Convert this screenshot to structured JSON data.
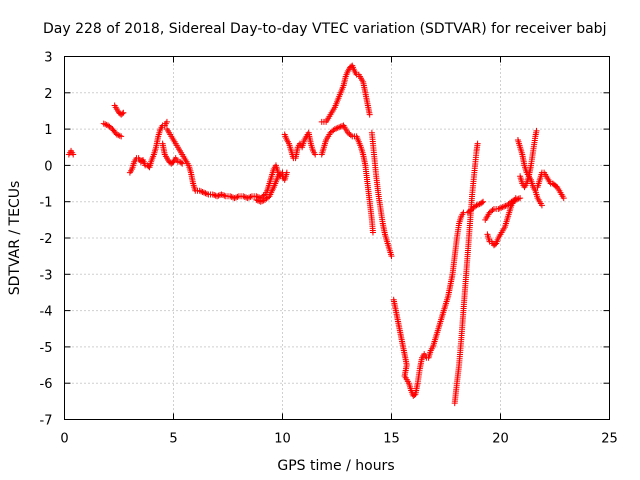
{
  "chart_data": {
    "type": "scatter",
    "title": "Day 228 of 2018, Sidereal Day-to-day VTEC variation (SDTVAR) for receiver babj",
    "xlabel": "GPS time / hours",
    "ylabel": "SDTVAR / TECUs",
    "xlim": [
      0,
      25
    ],
    "ylim": [
      -7,
      3
    ],
    "xticks": [
      "0",
      "5",
      "10",
      "15",
      "20",
      "25"
    ],
    "yticks": [
      "3",
      "2",
      "1",
      "0",
      "-1",
      "-2",
      "-3",
      "-4",
      "-5",
      "-6",
      "-7"
    ],
    "grid": true,
    "marker": "+",
    "color": "#ff0000",
    "series": [
      {
        "segments": [
          [
            [
              0.2,
              0.3
            ],
            [
              0.3,
              0.4
            ],
            [
              0.4,
              0.3
            ]
          ],
          [
            [
              1.8,
              1.15
            ],
            [
              2.0,
              1.1
            ],
            [
              2.2,
              1.0
            ],
            [
              2.4,
              0.85
            ],
            [
              2.6,
              0.8
            ]
          ],
          [
            [
              2.3,
              1.65
            ],
            [
              2.4,
              1.55
            ],
            [
              2.5,
              1.45
            ],
            [
              2.6,
              1.4
            ],
            [
              2.7,
              1.45
            ]
          ],
          [
            [
              3.0,
              -0.2
            ],
            [
              3.1,
              -0.1
            ],
            [
              3.2,
              0.1
            ],
            [
              3.3,
              0.2
            ],
            [
              3.4,
              0.2
            ],
            [
              3.5,
              0.1
            ],
            [
              3.6,
              0.15
            ],
            [
              3.7,
              0.0
            ],
            [
              3.8,
              0.0
            ],
            [
              3.9,
              -0.05
            ],
            [
              4.0,
              0.15
            ],
            [
              4.1,
              0.3
            ],
            [
              4.2,
              0.5
            ],
            [
              4.3,
              0.8
            ],
            [
              4.4,
              1.0
            ],
            [
              4.5,
              1.1
            ],
            [
              4.6,
              1.1
            ],
            [
              4.7,
              1.2
            ]
          ],
          [
            [
              4.5,
              0.6
            ],
            [
              4.6,
              0.3
            ],
            [
              4.7,
              0.2
            ],
            [
              4.8,
              0.1
            ],
            [
              4.9,
              0.05
            ],
            [
              5.0,
              0.1
            ],
            [
              5.1,
              0.2
            ],
            [
              5.2,
              0.1
            ],
            [
              5.3,
              0.1
            ],
            [
              5.4,
              0.05
            ]
          ],
          [
            [
              4.7,
              1.0
            ],
            [
              4.8,
              0.9
            ],
            [
              4.9,
              0.8
            ],
            [
              5.0,
              0.7
            ],
            [
              5.1,
              0.6
            ],
            [
              5.2,
              0.5
            ],
            [
              5.3,
              0.4
            ],
            [
              5.4,
              0.3
            ],
            [
              5.5,
              0.2
            ],
            [
              5.6,
              0.1
            ],
            [
              5.7,
              0.0
            ],
            [
              5.8,
              -0.2
            ],
            [
              5.9,
              -0.5
            ],
            [
              6.0,
              -0.7
            ],
            [
              6.2,
              -0.7
            ],
            [
              6.4,
              -0.75
            ],
            [
              6.6,
              -0.8
            ],
            [
              6.8,
              -0.8
            ],
            [
              7.0,
              -0.85
            ],
            [
              7.2,
              -0.8
            ],
            [
              7.4,
              -0.85
            ],
            [
              7.6,
              -0.85
            ],
            [
              7.8,
              -0.9
            ],
            [
              8.0,
              -0.85
            ],
            [
              8.2,
              -0.85
            ],
            [
              8.4,
              -0.9
            ],
            [
              8.6,
              -0.85
            ],
            [
              8.8,
              -0.85
            ],
            [
              9.0,
              -0.9
            ],
            [
              9.2,
              -0.8
            ],
            [
              9.3,
              -0.7
            ],
            [
              9.4,
              -0.5
            ],
            [
              9.5,
              -0.3
            ],
            [
              9.6,
              -0.1
            ],
            [
              9.7,
              0.0
            ],
            [
              9.8,
              -0.2
            ],
            [
              9.9,
              -0.3
            ],
            [
              10.0,
              -0.3
            ],
            [
              10.1,
              -0.4
            ],
            [
              10.2,
              -0.2
            ]
          ],
          [
            [
              8.8,
              -0.95
            ],
            [
              9.0,
              -1.0
            ],
            [
              9.2,
              -0.95
            ],
            [
              9.4,
              -0.85
            ],
            [
              9.6,
              -0.6
            ],
            [
              9.8,
              -0.3
            ],
            [
              10.0,
              -0.2
            ]
          ],
          [
            [
              10.1,
              0.85
            ],
            [
              10.2,
              0.7
            ],
            [
              10.3,
              0.6
            ],
            [
              10.4,
              0.4
            ],
            [
              10.5,
              0.2
            ],
            [
              10.6,
              0.2
            ],
            [
              10.7,
              0.5
            ],
            [
              10.8,
              0.6
            ],
            [
              10.9,
              0.5
            ],
            [
              11.0,
              0.7
            ],
            [
              11.1,
              0.8
            ],
            [
              11.2,
              0.9
            ],
            [
              11.3,
              0.6
            ],
            [
              11.4,
              0.4
            ],
            [
              11.5,
              0.3
            ]
          ],
          [
            [
              11.8,
              0.3
            ],
            [
              11.9,
              0.5
            ],
            [
              12.0,
              0.7
            ],
            [
              12.2,
              0.9
            ],
            [
              12.4,
              1.0
            ],
            [
              12.6,
              1.05
            ],
            [
              12.8,
              1.1
            ],
            [
              13.0,
              0.9
            ],
            [
              13.2,
              0.8
            ],
            [
              13.4,
              0.8
            ],
            [
              13.6,
              0.5
            ],
            [
              13.7,
              0.3
            ],
            [
              13.8,
              0.0
            ],
            [
              13.9,
              -0.5
            ],
            [
              14.0,
              -1.0
            ],
            [
              14.1,
              -1.5
            ],
            [
              14.15,
              -1.85
            ]
          ],
          [
            [
              11.8,
              1.2
            ],
            [
              12.0,
              1.2
            ],
            [
              12.2,
              1.4
            ],
            [
              12.4,
              1.6
            ],
            [
              12.6,
              1.9
            ],
            [
              12.8,
              2.2
            ],
            [
              12.9,
              2.45
            ],
            [
              13.0,
              2.6
            ],
            [
              13.1,
              2.7
            ],
            [
              13.2,
              2.75
            ],
            [
              13.3,
              2.6
            ],
            [
              13.4,
              2.5
            ],
            [
              13.5,
              2.5
            ],
            [
              13.6,
              2.4
            ],
            [
              13.7,
              2.3
            ],
            [
              13.8,
              2.0
            ],
            [
              13.9,
              1.7
            ],
            [
              14.0,
              1.4
            ]
          ],
          [
            [
              14.1,
              0.9
            ],
            [
              14.2,
              0.3
            ],
            [
              14.3,
              -0.3
            ],
            [
              14.4,
              -0.8
            ],
            [
              14.5,
              -1.2
            ],
            [
              14.6,
              -1.6
            ],
            [
              14.7,
              -1.9
            ],
            [
              14.8,
              -2.1
            ],
            [
              14.9,
              -2.3
            ],
            [
              15.0,
              -2.5
            ]
          ],
          [
            [
              15.1,
              -3.7
            ],
            [
              15.2,
              -4.0
            ],
            [
              15.3,
              -4.3
            ],
            [
              15.4,
              -4.6
            ],
            [
              15.5,
              -4.9
            ],
            [
              15.6,
              -5.2
            ],
            [
              15.7,
              -5.5
            ],
            [
              15.6,
              -5.8
            ],
            [
              15.7,
              -5.9
            ],
            [
              15.8,
              -6.0
            ],
            [
              15.9,
              -6.2
            ],
            [
              16.0,
              -6.35
            ],
            [
              16.1,
              -6.3
            ],
            [
              16.2,
              -6.0
            ],
            [
              16.3,
              -5.6
            ],
            [
              16.4,
              -5.3
            ],
            [
              16.5,
              -5.2
            ],
            [
              16.6,
              -5.3
            ]
          ],
          [
            [
              16.7,
              -5.3
            ],
            [
              16.8,
              -5.1
            ],
            [
              16.9,
              -5.0
            ],
            [
              17.0,
              -4.8
            ],
            [
              17.1,
              -4.6
            ],
            [
              17.2,
              -4.4
            ],
            [
              17.3,
              -4.2
            ],
            [
              17.4,
              -4.0
            ],
            [
              17.5,
              -3.8
            ],
            [
              17.6,
              -3.6
            ],
            [
              17.7,
              -3.3
            ],
            [
              17.8,
              -3.0
            ],
            [
              17.9,
              -2.5
            ],
            [
              18.0,
              -2.0
            ],
            [
              18.1,
              -1.6
            ],
            [
              18.2,
              -1.4
            ],
            [
              18.3,
              -1.3
            ]
          ],
          [
            [
              17.9,
              -6.55
            ],
            [
              18.0,
              -6.0
            ],
            [
              18.1,
              -5.5
            ],
            [
              18.2,
              -4.8
            ],
            [
              18.3,
              -4.0
            ],
            [
              18.4,
              -3.2
            ],
            [
              18.5,
              -2.4
            ],
            [
              18.6,
              -1.6
            ],
            [
              18.7,
              -0.8
            ],
            [
              18.8,
              -0.2
            ],
            [
              18.9,
              0.4
            ],
            [
              18.95,
              0.6
            ]
          ],
          [
            [
              18.5,
              -1.3
            ],
            [
              18.7,
              -1.2
            ],
            [
              18.9,
              -1.1
            ],
            [
              19.1,
              -1.05
            ],
            [
              19.2,
              -1.0
            ]
          ],
          [
            [
              19.4,
              -1.9
            ],
            [
              19.5,
              -2.1
            ],
            [
              19.6,
              -2.1
            ],
            [
              19.7,
              -2.2
            ],
            [
              19.8,
              -2.15
            ],
            [
              19.9,
              -2.0
            ],
            [
              20.0,
              -1.9
            ],
            [
              20.1,
              -1.8
            ],
            [
              20.2,
              -1.7
            ],
            [
              20.3,
              -1.5
            ],
            [
              20.4,
              -1.3
            ],
            [
              20.5,
              -1.1
            ],
            [
              20.6,
              -1.0
            ],
            [
              20.7,
              -0.9
            ]
          ],
          [
            [
              19.3,
              -1.5
            ],
            [
              19.5,
              -1.3
            ],
            [
              19.7,
              -1.2
            ],
            [
              19.9,
              -1.2
            ],
            [
              20.1,
              -1.15
            ],
            [
              20.3,
              -1.1
            ],
            [
              20.5,
              -1.0
            ],
            [
              20.7,
              -0.95
            ],
            [
              20.9,
              -0.9
            ]
          ],
          [
            [
              20.8,
              0.7
            ],
            [
              20.9,
              0.5
            ],
            [
              21.0,
              0.3
            ],
            [
              21.1,
              0.0
            ],
            [
              21.2,
              -0.2
            ],
            [
              21.3,
              -0.3
            ],
            [
              21.4,
              -0.4
            ],
            [
              21.5,
              -0.6
            ],
            [
              21.6,
              -0.7
            ],
            [
              21.7,
              -0.9
            ],
            [
              21.8,
              -1.0
            ],
            [
              21.9,
              -1.1
            ]
          ],
          [
            [
              20.9,
              -0.3
            ],
            [
              21.0,
              -0.5
            ],
            [
              21.1,
              -0.6
            ],
            [
              21.2,
              -0.5
            ],
            [
              21.3,
              -0.3
            ],
            [
              21.4,
              0.0
            ],
            [
              21.5,
              0.4
            ],
            [
              21.6,
              0.8
            ],
            [
              21.65,
              0.95
            ]
          ],
          [
            [
              21.7,
              -0.6
            ],
            [
              21.8,
              -0.4
            ],
            [
              21.9,
              -0.2
            ],
            [
              22.0,
              -0.2
            ],
            [
              22.1,
              -0.3
            ],
            [
              22.2,
              -0.4
            ],
            [
              22.3,
              -0.5
            ],
            [
              22.4,
              -0.5
            ],
            [
              22.5,
              -0.55
            ],
            [
              22.6,
              -0.6
            ],
            [
              22.7,
              -0.7
            ],
            [
              22.8,
              -0.8
            ],
            [
              22.9,
              -0.9
            ]
          ]
        ]
      }
    ]
  }
}
